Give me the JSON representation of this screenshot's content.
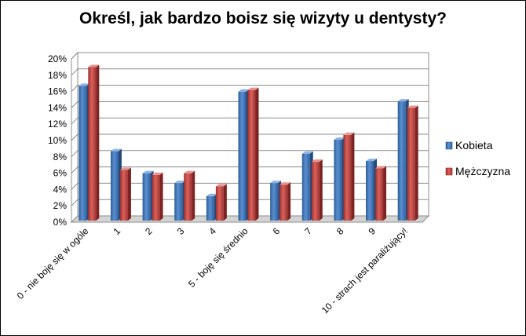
{
  "chart_data": {
    "type": "bar",
    "title": "Określ, jak bardzo boisz się wizyty u dentysty?",
    "categories": [
      "0 - nie boję się w ogóle",
      "1",
      "2",
      "3",
      "4",
      "5 - boję się średnio",
      "6",
      "7",
      "8",
      "9",
      "10 - strach jest paraliżujący!"
    ],
    "series": [
      {
        "name": "Kobieta",
        "color": "#4f81bd",
        "values": [
          16.5,
          8.5,
          5.8,
          4.6,
          3.0,
          15.8,
          4.6,
          8.2,
          9.9,
          7.3,
          14.6
        ]
      },
      {
        "name": "Mężczyzna",
        "color": "#c0504d",
        "values": [
          18.8,
          6.2,
          5.6,
          5.8,
          4.2,
          16.0,
          4.4,
          7.2,
          10.5,
          6.4,
          13.8
        ]
      }
    ],
    "y_tick_labels": [
      "0%",
      "2%",
      "4%",
      "6%",
      "8%",
      "10%",
      "12%",
      "14%",
      "16%",
      "18%",
      "20%"
    ],
    "ylim": [
      0,
      20
    ],
    "grid": true,
    "legend_position": "right",
    "xlabel": "",
    "ylabel": ""
  }
}
